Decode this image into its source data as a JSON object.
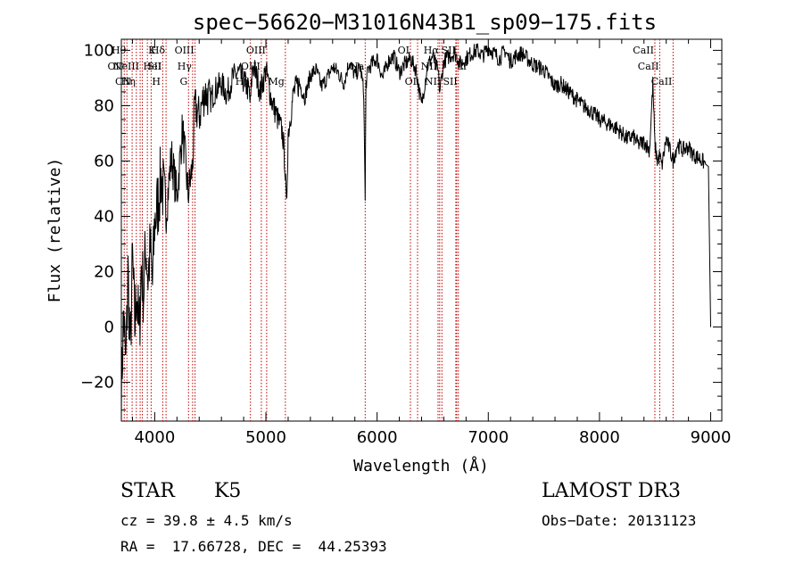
{
  "chart_data": {
    "type": "line",
    "title": "spec−56620−M31016N43B1_sp09−175.fits",
    "xlabel": "Wavelength (Å)",
    "ylabel": "Flux (relative)",
    "xlim": [
      3700,
      9100
    ],
    "ylim": [
      -34,
      104
    ],
    "xticks": [
      4000,
      5000,
      6000,
      7000,
      8000,
      9000
    ],
    "xtick_labels": [
      "4000",
      "5000",
      "6000",
      "7000",
      "8000",
      "9000"
    ],
    "yticks": [
      -20,
      0,
      20,
      40,
      60,
      80,
      100
    ],
    "ytick_labels": [
      "−20",
      "0",
      "20",
      "40",
      "60",
      "80",
      "100"
    ],
    "grid": false,
    "series": [
      {
        "name": "flux",
        "x": [
          3700,
          3720,
          3740,
          3760,
          3780,
          3800,
          3820,
          3840,
          3860,
          3880,
          3900,
          3920,
          3940,
          3960,
          3980,
          4000,
          4030,
          4060,
          4100,
          4150,
          4200,
          4250,
          4300,
          4340,
          4360,
          4400,
          4450,
          4500,
          4550,
          4600,
          4650,
          4700,
          4750,
          4800,
          4850,
          4860,
          4880,
          4920,
          4950,
          5000,
          5050,
          5100,
          5150,
          5170,
          5185,
          5200,
          5250,
          5300,
          5350,
          5400,
          5450,
          5500,
          5550,
          5600,
          5650,
          5700,
          5750,
          5800,
          5850,
          5880,
          5893,
          5900,
          5920,
          5950,
          6000,
          6050,
          6100,
          6150,
          6200,
          6250,
          6300,
          6350,
          6400,
          6450,
          6500,
          6550,
          6563,
          6600,
          6650,
          6700,
          6750,
          6800,
          6850,
          6900,
          6950,
          7000,
          7050,
          7100,
          7150,
          7200,
          7250,
          7300,
          7350,
          7400,
          7450,
          7500,
          7550,
          7600,
          7650,
          7700,
          7750,
          7800,
          7850,
          7900,
          7950,
          8000,
          8050,
          8100,
          8150,
          8200,
          8250,
          8300,
          8350,
          8400,
          8450,
          8480,
          8498,
          8520,
          8542,
          8560,
          8600,
          8640,
          8662,
          8700,
          8750,
          8800,
          8850,
          8900,
          8950,
          8980,
          9000
        ],
        "values": [
          -25,
          5,
          -15,
          20,
          -10,
          25,
          0,
          15,
          -5,
          22,
          12,
          30,
          18,
          28,
          15,
          38,
          45,
          55,
          40,
          62,
          47,
          72,
          48,
          58,
          80,
          76,
          85,
          82,
          86,
          88,
          84,
          90,
          92,
          89,
          85,
          80,
          95,
          90,
          85,
          93,
          82,
          76,
          70,
          60,
          42,
          70,
          85,
          88,
          83,
          91,
          93,
          87,
          90,
          94,
          92,
          88,
          96,
          91,
          94,
          85,
          45,
          88,
          93,
          95,
          97,
          90,
          96,
          98,
          92,
          95,
          97,
          93,
          80,
          94,
          98,
          92,
          85,
          96,
          98,
          99,
          95,
          97,
          99,
          100,
          98,
          101,
          99,
          97,
          100,
          96,
          98,
          99,
          97,
          95,
          94,
          93,
          90,
          87,
          88,
          86,
          84,
          82,
          80,
          79,
          77,
          75,
          74,
          73,
          72,
          70,
          68,
          69,
          66,
          67,
          64,
          88,
          66,
          60,
          62,
          58,
          68,
          63,
          60,
          66,
          64,
          65,
          62,
          61,
          59,
          58,
          0
        ]
      }
    ],
    "lines": [
      {
        "wl": 3726,
        "label": "OII",
        "row": 1,
        "side": "left"
      },
      {
        "wl": 3750,
        "label": "Hθ",
        "row": 0,
        "side": "left"
      },
      {
        "wl": 3797,
        "label": "CN",
        "row": 2,
        "side": "left"
      },
      {
        "wl": 3835,
        "label": "Hη",
        "row": 2,
        "side": "left"
      },
      {
        "wl": 3869,
        "label": "NeIII",
        "row": 1,
        "side": "left"
      },
      {
        "wl": 3889,
        "label": "HeI",
        "row": 1,
        "side": "right"
      },
      {
        "wl": 3934,
        "label": "K",
        "row": 0,
        "side": "right"
      },
      {
        "wl": 3968,
        "label": "H",
        "row": 2,
        "side": "right"
      },
      {
        "wl": 4072,
        "label": "SII",
        "row": 1,
        "side": "left"
      },
      {
        "wl": 4102,
        "label": "Hδ",
        "row": 0,
        "side": "left"
      },
      {
        "wl": 4304,
        "label": "G",
        "row": 2,
        "side": "left"
      },
      {
        "wl": 4341,
        "label": "Hγ",
        "row": 1,
        "side": "left"
      },
      {
        "wl": 4363,
        "label": "OIII",
        "row": 0,
        "side": "left"
      },
      {
        "wl": 4861,
        "label": "Hβ",
        "row": 2,
        "side": "left"
      },
      {
        "wl": 4959,
        "label": "OIII",
        "row": 1,
        "side": "left"
      },
      {
        "wl": 5007,
        "label": "OIII",
        "row": 0,
        "side": "left"
      },
      {
        "wl": 5175,
        "label": "Mg",
        "row": 2,
        "side": "left"
      },
      {
        "wl": 5893,
        "label": "Na",
        "row": 1,
        "side": "left"
      },
      {
        "wl": 6300,
        "label": "OI",
        "row": 0,
        "side": "left"
      },
      {
        "wl": 6364,
        "label": "OI",
        "row": 2,
        "side": "left"
      },
      {
        "wl": 6548,
        "label": "NII",
        "row": 1,
        "side": "left"
      },
      {
        "wl": 6563,
        "label": "Hα",
        "row": 0,
        "side": "left"
      },
      {
        "wl": 6583,
        "label": "NII",
        "row": 2,
        "side": "left"
      },
      {
        "wl": 6708,
        "label": "Li",
        "row": 1,
        "side": "right"
      },
      {
        "wl": 6716,
        "label": "SII",
        "row": 0,
        "side": "left"
      },
      {
        "wl": 6731,
        "label": "SII",
        "row": 2,
        "side": "left"
      },
      {
        "wl": 8498,
        "label": "CaII",
        "row": 0,
        "side": "left"
      },
      {
        "wl": 8542,
        "label": "CaII",
        "row": 1,
        "side": "left"
      },
      {
        "wl": 8662,
        "label": "CaII",
        "row": 2,
        "side": "left"
      }
    ]
  },
  "info": {
    "class": "STAR",
    "subclass": "K5",
    "cz": "cz = 39.8 ± 4.5 km/s",
    "radec": "RA =  17.66728, DEC =  44.25393",
    "survey": "LAMOST DR3",
    "obs_date": "Obs−Date: 20131123"
  }
}
